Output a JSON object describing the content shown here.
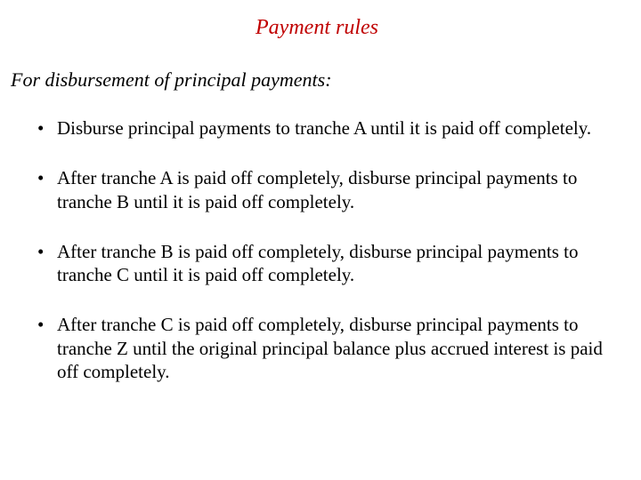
{
  "title": "Payment rules",
  "title_color": "#c00000",
  "subtitle": "For disbursement of principal payments:",
  "bullets": [
    "Disburse principal payments to tranche A until it is paid off completely.",
    "After tranche A is paid off completely, disburse principal payments to tranche B until it is paid off completely.",
    "After tranche B is paid off completely, disburse principal payments to tranche C until it is paid off completely.",
    "After tranche C is paid off completely, disburse principal payments to tranche Z until the original principal balance plus accrued interest is paid off completely."
  ],
  "background_color": "#ffffff",
  "body_text_color": "#000000",
  "font_family": "Times New Roman",
  "title_fontsize": 24,
  "subtitle_fontsize": 22,
  "body_fontsize": 21
}
